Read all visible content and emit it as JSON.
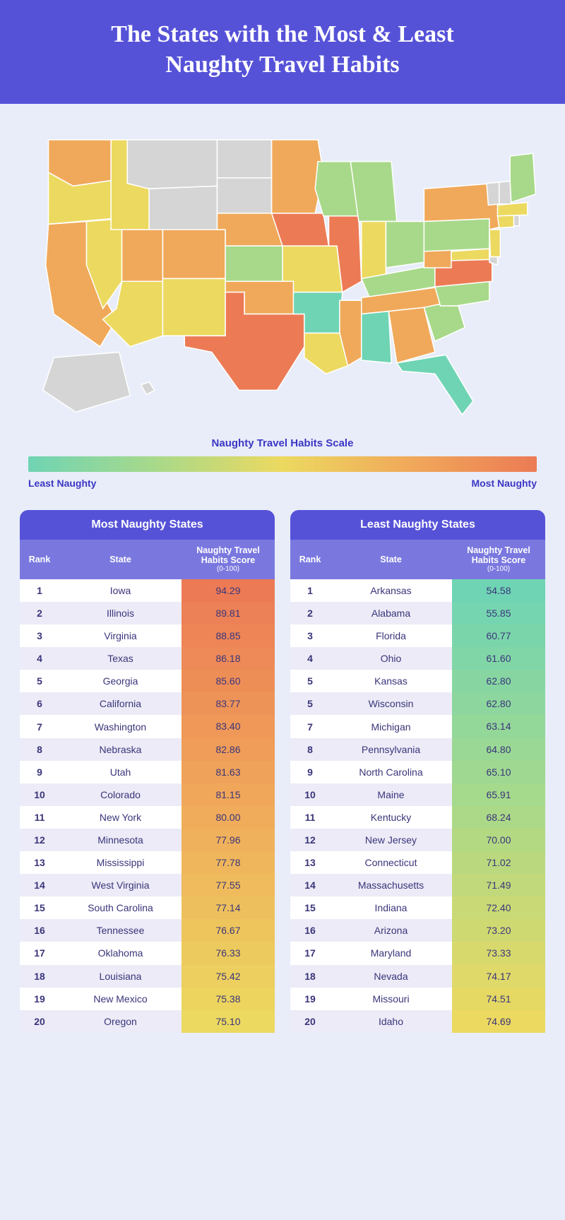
{
  "header": {
    "title_line1": "The States with the Most & Least",
    "title_line2": "Naughty Travel Habits"
  },
  "colors": {
    "header_bg": "#5652d8",
    "sub_header_bg": "#7a78df",
    "page_bg": "#e8edf9",
    "accent_text": "#3c36c4",
    "row_alt": "#ecebf7",
    "no_data": "#d5d5d5",
    "gradient": [
      "#6fd4b4",
      "#a8d98a",
      "#ecd960",
      "#f0a95a",
      "#ec7b55"
    ]
  },
  "scale": {
    "title": "Naughty Travel Habits Scale",
    "left": "Least Naughty",
    "right": "Most Naughty"
  },
  "map": {
    "type": "choropleth",
    "region": "US states",
    "legend": "gradient least→most naughty",
    "states": {
      "WA": "#f0a95a",
      "OR": "#ecd960",
      "CA": "#f0a95a",
      "NV": "#ecd960",
      "ID": "#ecd960",
      "MT": "#d5d5d5",
      "WY": "#d5d5d5",
      "UT": "#f0a95a",
      "AZ": "#ecd960",
      "CO": "#f0a95a",
      "NM": "#ecd960",
      "ND": "#d5d5d5",
      "SD": "#d5d5d5",
      "NE": "#f0a95a",
      "KS": "#a8d98a",
      "OK": "#f0a95a",
      "TX": "#ec7b55",
      "MN": "#f0a95a",
      "IA": "#ec7b55",
      "MO": "#ecd960",
      "AR": "#6fd4b4",
      "LA": "#ecd960",
      "WI": "#a8d98a",
      "IL": "#ec7b55",
      "MS": "#f0a95a",
      "MI": "#a8d98a",
      "IN": "#ecd960",
      "OH": "#a8d98a",
      "KY": "#a8d98a",
      "TN": "#f0a95a",
      "AL": "#6fd4b4",
      "GA": "#f0a95a",
      "FL": "#6fd4b4",
      "SC": "#a8d98a",
      "NC": "#a8d98a",
      "VA": "#ec7b55",
      "WV": "#f0a95a",
      "MD": "#ecd960",
      "DE": "#d5d5d5",
      "PA": "#a8d98a",
      "NJ": "#ecd960",
      "NY": "#f0a95a",
      "CT": "#ecd960",
      "RI": "#d5d5d5",
      "MA": "#ecd960",
      "VT": "#d5d5d5",
      "NH": "#d5d5d5",
      "ME": "#a8d98a",
      "AK": "#d5d5d5",
      "HI": "#d5d5d5"
    }
  },
  "tables": {
    "headers": {
      "rank": "Rank",
      "state": "State",
      "score": "Naughty Travel Habits Score",
      "score_sub": "(0-100)"
    },
    "most": {
      "title": "Most Naughty States",
      "score_gradient": [
        "#ec7b55",
        "#f0a95a",
        "#ecd960"
      ],
      "rows": [
        {
          "rank": "1",
          "state": "Iowa",
          "score": "94.29"
        },
        {
          "rank": "2",
          "state": "Illinois",
          "score": "89.81"
        },
        {
          "rank": "3",
          "state": "Virginia",
          "score": "88.85"
        },
        {
          "rank": "4",
          "state": "Texas",
          "score": "86.18"
        },
        {
          "rank": "5",
          "state": "Georgia",
          "score": "85.60"
        },
        {
          "rank": "6",
          "state": "California",
          "score": "83.77"
        },
        {
          "rank": "7",
          "state": "Washington",
          "score": "83.40"
        },
        {
          "rank": "8",
          "state": "Nebraska",
          "score": "82.86"
        },
        {
          "rank": "9",
          "state": "Utah",
          "score": "81.63"
        },
        {
          "rank": "10",
          "state": "Colorado",
          "score": "81.15"
        },
        {
          "rank": "11",
          "state": "New York",
          "score": "80.00"
        },
        {
          "rank": "12",
          "state": "Minnesota",
          "score": "77.96"
        },
        {
          "rank": "13",
          "state": "Mississippi",
          "score": "77.78"
        },
        {
          "rank": "14",
          "state": "West Virginia",
          "score": "77.55"
        },
        {
          "rank": "15",
          "state": "South Carolina",
          "score": "77.14"
        },
        {
          "rank": "16",
          "state": "Tennessee",
          "score": "76.67"
        },
        {
          "rank": "17",
          "state": "Oklahoma",
          "score": "76.33"
        },
        {
          "rank": "18",
          "state": "Louisiana",
          "score": "75.42"
        },
        {
          "rank": "19",
          "state": "New Mexico",
          "score": "75.38"
        },
        {
          "rank": "20",
          "state": "Oregon",
          "score": "75.10"
        }
      ]
    },
    "least": {
      "title": "Least Naughty States",
      "score_gradient": [
        "#6fd4b4",
        "#a8d98a",
        "#ecd960"
      ],
      "rows": [
        {
          "rank": "1",
          "state": "Arkansas",
          "score": "54.58"
        },
        {
          "rank": "2",
          "state": "Alabama",
          "score": "55.85"
        },
        {
          "rank": "3",
          "state": "Florida",
          "score": "60.77"
        },
        {
          "rank": "4",
          "state": "Ohio",
          "score": "61.60"
        },
        {
          "rank": "5",
          "state": "Kansas",
          "score": "62.80"
        },
        {
          "rank": "5",
          "state": "Wisconsin",
          "score": "62.80"
        },
        {
          "rank": "7",
          "state": "Michigan",
          "score": "63.14"
        },
        {
          "rank": "8",
          "state": "Pennsylvania",
          "score": "64.80"
        },
        {
          "rank": "9",
          "state": "North Carolina",
          "score": "65.10"
        },
        {
          "rank": "10",
          "state": "Maine",
          "score": "65.91"
        },
        {
          "rank": "11",
          "state": "Kentucky",
          "score": "68.24"
        },
        {
          "rank": "12",
          "state": "New Jersey",
          "score": "70.00"
        },
        {
          "rank": "13",
          "state": "Connecticut",
          "score": "71.02"
        },
        {
          "rank": "14",
          "state": "Massachusetts",
          "score": "71.49"
        },
        {
          "rank": "15",
          "state": "Indiana",
          "score": "72.40"
        },
        {
          "rank": "16",
          "state": "Arizona",
          "score": "73.20"
        },
        {
          "rank": "17",
          "state": "Maryland",
          "score": "73.33"
        },
        {
          "rank": "18",
          "state": "Nevada",
          "score": "74.17"
        },
        {
          "rank": "19",
          "state": "Missouri",
          "score": "74.51"
        },
        {
          "rank": "20",
          "state": "Idaho",
          "score": "74.69"
        }
      ]
    }
  }
}
